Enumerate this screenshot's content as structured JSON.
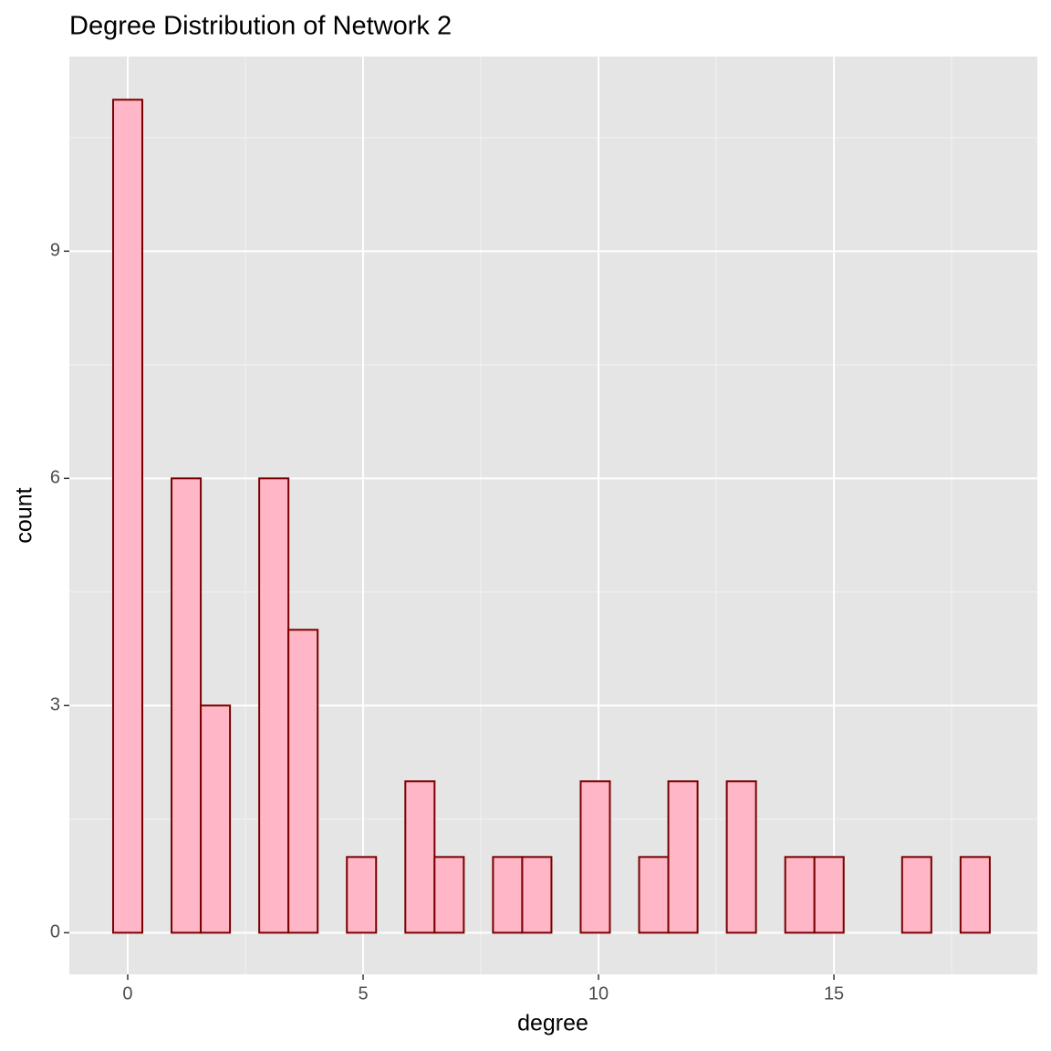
{
  "chart_data": {
    "type": "histogram",
    "title": "Degree Distribution of Network 2",
    "x_label": "degree",
    "y_label": "count",
    "bins": [
      -0.3103,
      0.3103,
      0.931,
      1.5517,
      2.1724,
      2.7931,
      3.4138,
      4.0345,
      4.6552,
      5.2759,
      5.8966,
      6.5172,
      7.1379,
      7.7586,
      8.3793,
      9.0,
      9.6207,
      10.2414,
      10.8621,
      11.4828,
      12.1034,
      12.7241,
      13.3448,
      13.9655,
      14.5862,
      15.2069,
      15.8276,
      16.4483,
      17.069,
      17.6897,
      18.3103
    ],
    "values": [
      11,
      0,
      6,
      3,
      0,
      6,
      4,
      0,
      1,
      0,
      2,
      1,
      0,
      1,
      1,
      0,
      2,
      0,
      1,
      2,
      0,
      2,
      0,
      1,
      1,
      0,
      0,
      1,
      0,
      1
    ],
    "color": "#ffb6c6",
    "edge_color": "#7a0000",
    "xlim": [
      -1.24,
      19.32
    ],
    "ylim": [
      -0.55,
      11.57
    ],
    "xticks": [
      0,
      5,
      10,
      15
    ],
    "yticks": [
      0,
      3,
      6,
      9
    ],
    "grid": true
  }
}
